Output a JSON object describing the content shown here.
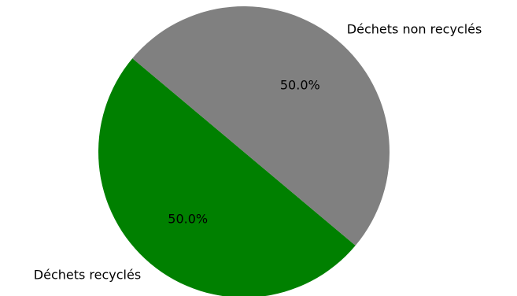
{
  "chart_data": {
    "type": "pie",
    "title": "",
    "slices": [
      {
        "label": "Déchets recyclés",
        "value": 50.0,
        "pct_label": "50.0%",
        "color": "#008000"
      },
      {
        "label": "Déchets non recyclés",
        "value": 50.0,
        "pct_label": "50.0%",
        "color": "#808080"
      }
    ],
    "start_angle_deg": 140,
    "direction": "counterclockwise",
    "legend": "none"
  }
}
